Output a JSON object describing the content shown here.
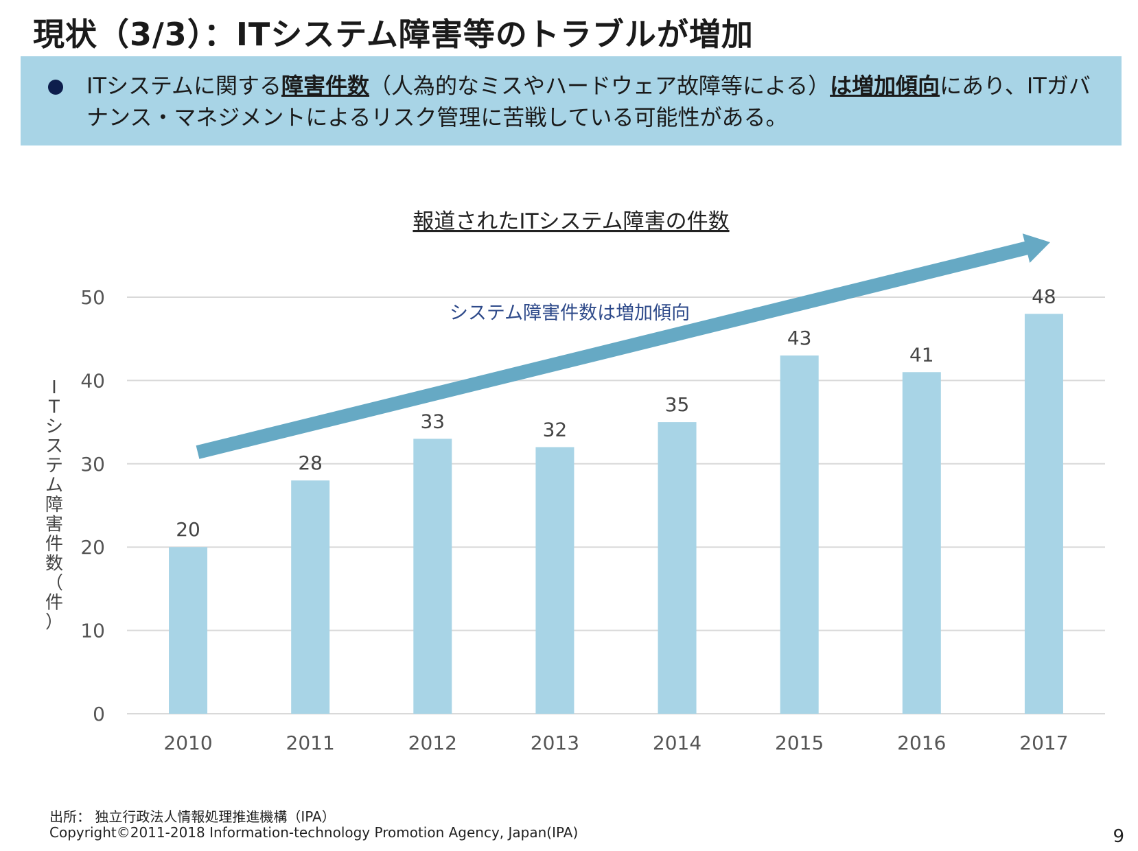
{
  "slide": {
    "title": "現状（3/3）：ITシステム障害等のトラブルが増加",
    "summary": {
      "part1": "ITシステムに関する",
      "emphasis1": "障害件数",
      "part2": "（人為的なミスやハードウェア故障等による）",
      "emphasis2": "は増加傾向",
      "part3": "にあり、ITガバナンス・マネジメントによるリスク管理に苦戦している可能性がある。"
    },
    "footer": {
      "source": "出所： 独立行政法人情報処理推進機構（IPA）",
      "copyright": "Copyright©2011-2018  Information-technology Promotion Agency, Japan(IPA)"
    },
    "page_number": "9"
  },
  "colors": {
    "bar": "#a8d4e6",
    "arrow": "#66a9c4",
    "summary_bg": "#a8d4e6",
    "bullet": "#0d1e4c",
    "grid": "#d9d9d9",
    "annotation": "#2e4a8a"
  },
  "chart_data": {
    "type": "bar",
    "title": "報道されたITシステム障害の件数",
    "ylabel": "ITシステム障害件数（件）",
    "xlabel": "",
    "categories": [
      "2010",
      "2011",
      "2012",
      "2013",
      "2014",
      "2015",
      "2016",
      "2017"
    ],
    "values": [
      20,
      28,
      33,
      32,
      35,
      43,
      41,
      48
    ],
    "ylim": [
      0,
      50
    ],
    "yticks": [
      0,
      10,
      20,
      30,
      40,
      50
    ],
    "grid": true,
    "legend": "none",
    "data_labels": true,
    "annotation": "システム障害件数は増加傾向"
  }
}
